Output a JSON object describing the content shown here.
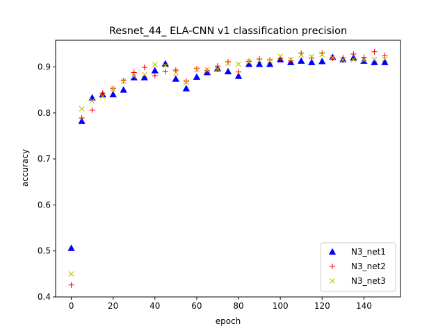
{
  "chart_data": {
    "type": "scatter",
    "title": "Resnet_44_ ELA-CNN v1 classification precision",
    "xlabel": "epoch",
    "ylabel": "accuracy",
    "xlim": [
      -7.5,
      157.5
    ],
    "ylim": [
      0.4,
      0.958
    ],
    "xticks": [
      0,
      20,
      40,
      60,
      80,
      100,
      120,
      140
    ],
    "yticks": [
      0.4,
      0.5,
      0.6,
      0.7,
      0.8,
      0.9
    ],
    "xtick_labels": [
      "0",
      "20",
      "40",
      "60",
      "80",
      "100",
      "120",
      "140"
    ],
    "ytick_labels": [
      "0.4",
      "0.5",
      "0.6",
      "0.7",
      "0.8",
      "0.9"
    ],
    "grid": false,
    "legend_position": "lower-right",
    "x": [
      0,
      5,
      10,
      15,
      20,
      25,
      30,
      35,
      40,
      45,
      50,
      55,
      60,
      65,
      70,
      75,
      80,
      85,
      90,
      95,
      100,
      105,
      110,
      115,
      120,
      125,
      130,
      135,
      140,
      145,
      150
    ],
    "series": [
      {
        "name": "N3_net1",
        "marker": "triangle",
        "color": "#0000ff",
        "values": [
          0.506,
          0.782,
          0.833,
          0.84,
          0.84,
          0.85,
          0.877,
          0.877,
          0.892,
          0.907,
          0.874,
          0.853,
          0.878,
          0.888,
          0.896,
          0.89,
          0.88,
          0.906,
          0.906,
          0.906,
          0.916,
          0.91,
          0.913,
          0.91,
          0.912,
          0.921,
          0.916,
          0.92,
          0.913,
          0.91,
          0.91
        ]
      },
      {
        "name": "N3_net2",
        "marker": "plus",
        "color": "#ff0000",
        "values": [
          0.426,
          0.789,
          0.806,
          0.843,
          0.853,
          0.87,
          0.888,
          0.899,
          0.881,
          0.89,
          0.893,
          0.869,
          0.896,
          0.892,
          0.902,
          0.911,
          0.889,
          0.912,
          0.917,
          0.915,
          0.919,
          0.914,
          0.93,
          0.919,
          0.93,
          0.919,
          0.92,
          0.928,
          0.921,
          0.933,
          0.925
        ]
      },
      {
        "name": "N3_net3",
        "marker": "x",
        "color": "#bfbf00",
        "values": [
          0.45,
          0.809,
          0.826,
          0.836,
          0.852,
          0.869,
          0.88,
          0.883,
          0.905,
          0.903,
          0.887,
          0.867,
          0.894,
          0.893,
          0.895,
          0.908,
          0.906,
          0.911,
          0.914,
          0.913,
          0.923,
          0.916,
          0.926,
          0.922,
          0.927,
          0.92,
          0.915,
          0.916,
          0.915,
          0.916,
          0.917
        ]
      }
    ]
  }
}
